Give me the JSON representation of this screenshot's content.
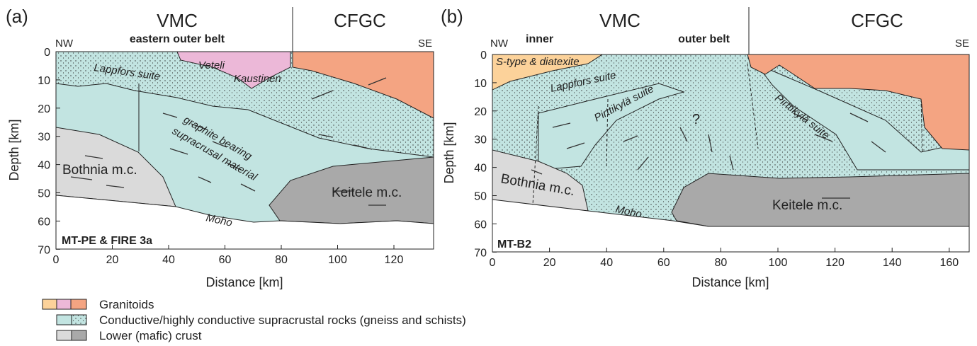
{
  "panel_a": {
    "label": "(a)",
    "regions": [
      "VMC",
      "CFGC"
    ],
    "subtitle": "eastern outer belt",
    "nw": "NW",
    "se": "SE",
    "x_axis_label": "Distance [km]",
    "y_axis_label": "Depth [km]",
    "xticks": [
      0,
      20,
      40,
      60,
      80,
      100,
      120
    ],
    "yticks": [
      0,
      10,
      20,
      30,
      40,
      50,
      60,
      70
    ],
    "profile": "MT-PE & FIRE 3a",
    "units": [
      "Lappfors suite",
      "Veteli",
      "Kaustinen",
      "graphite bearing",
      "supracrusal material",
      "Bothnia m.c.",
      "Keitele m.c.",
      "Moho"
    ]
  },
  "panel_b": {
    "label": "(b)",
    "regions": [
      "VMC",
      "CFGC"
    ],
    "inner": "inner",
    "outer": "outer belt",
    "nw": "NW",
    "se": "SE",
    "x_axis_label": "Distance [km]",
    "y_axis_label": "Depth [km]",
    "xticks": [
      0,
      20,
      40,
      60,
      80,
      100,
      120,
      140,
      160
    ],
    "yticks": [
      0,
      10,
      20,
      30,
      40,
      50,
      60,
      70
    ],
    "profile": "MT-B2",
    "units": [
      "S-type & diatexite",
      "Lappfors suite",
      "Pirttikylä suite",
      "?",
      "Pirttikylä suite",
      "Bothnia m.c.",
      "Keitele m.c.",
      "Moho"
    ]
  },
  "legend": [
    "Granitoids",
    "Conductive/highly conductive supracrustal rocks (gneiss and schists)",
    "Lower (mafic) crust"
  ]
}
